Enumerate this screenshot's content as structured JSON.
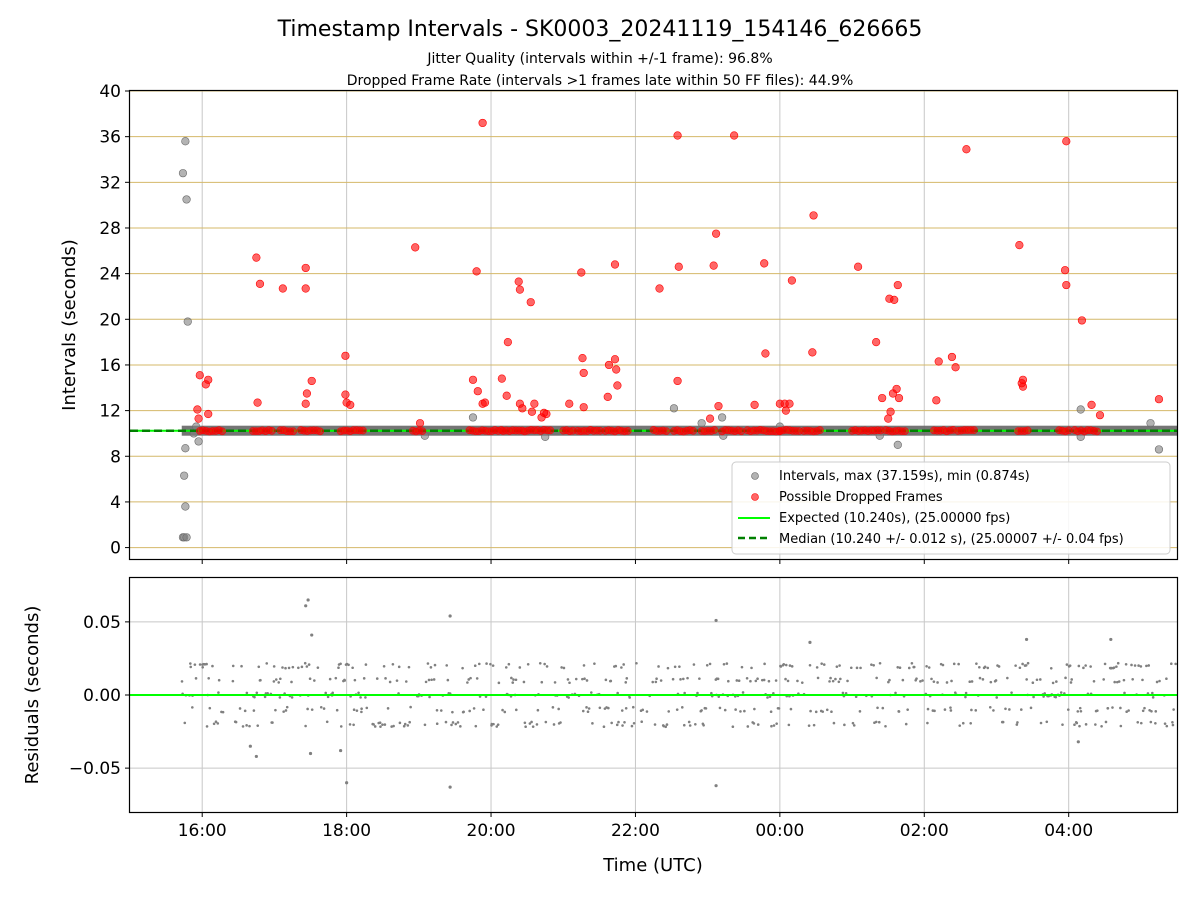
{
  "title": "Timestamp Intervals - SK0003_20241119_154146_626665",
  "subtitle_1": "Jitter Quality (intervals within +/-1 frame): 96.8%",
  "subtitle_2": "Dropped Frame Rate (intervals >1 frames late within 50 FF files): 44.9%",
  "colors": {
    "intervals": "#808080",
    "dropped": "#ff0000",
    "expected": "#00ff00",
    "median": "#008000",
    "hgrid_top": "#d4b86a",
    "vgrid": "#c8c8c8",
    "band": "#666666"
  },
  "chart_data": [
    {
      "type": "scatter",
      "ylabel": "Intervals (seconds)",
      "xlim": [
        "15:00",
        "05:30"
      ],
      "ylim": [
        -1,
        40
      ],
      "yticks": [
        "0",
        "4",
        "8",
        "12",
        "16",
        "20",
        "24",
        "28",
        "32",
        "36",
        "40"
      ],
      "grid": true,
      "legend_placement": "lower right",
      "legend": [
        "Intervals, max (37.159s), min (0.874s)",
        "Possible Dropped Frames",
        "Expected (10.240s), (25.00000 fps)",
        "Median (10.240 +/- 0.012 s), (25.00007 +/- 0.04 fps)"
      ],
      "expected_interval": 10.24,
      "median_interval": 10.24,
      "band": {
        "x_start": "15:43",
        "x_end": "05:30",
        "y_center": 10.24
      },
      "series": [
        {
          "name": "Intervals, max (37.159s), min (0.874s)",
          "points": [
            [
              "15:46",
              35.6
            ],
            [
              "15:44",
              32.8
            ],
            [
              "15:47",
              30.5
            ],
            [
              "15:48",
              19.8
            ],
            [
              "15:45",
              6.3
            ],
            [
              "15:46",
              3.6
            ],
            [
              "15:44",
              0.9
            ],
            [
              "15:45",
              0.9
            ],
            [
              "15:47",
              0.9
            ],
            [
              "15:46",
              8.7
            ],
            [
              "15:57",
              9.3
            ],
            [
              "15:53",
              10.0
            ],
            [
              "15:55",
              10.6
            ],
            [
              "19:05",
              9.8
            ],
            [
              "19:45",
              11.4
            ],
            [
              "20:45",
              9.7
            ],
            [
              "22:32",
              12.2
            ],
            [
              "22:55",
              10.9
            ],
            [
              "23:12",
              11.4
            ],
            [
              "23:13",
              9.8
            ],
            [
              "00:00",
              10.6
            ],
            [
              "01:23",
              9.8
            ],
            [
              "01:38",
              9.0
            ],
            [
              "04:10",
              12.1
            ],
            [
              "04:10",
              9.7
            ],
            [
              "05:08",
              10.9
            ],
            [
              "05:15",
              8.6
            ]
          ]
        },
        {
          "name": "Possible Dropped Frames",
          "points": [
            [
              "15:58",
              15.1
            ],
            [
              "16:03",
              14.3
            ],
            [
              "16:05",
              14.7
            ],
            [
              "15:56",
              12.1
            ],
            [
              "16:05",
              11.7
            ],
            [
              "15:57",
              11.3
            ],
            [
              "16:45",
              25.4
            ],
            [
              "16:48",
              23.1
            ],
            [
              "16:46",
              12.7
            ],
            [
              "17:07",
              22.7
            ],
            [
              "17:26",
              24.5
            ],
            [
              "17:26",
              22.7
            ],
            [
              "17:31",
              14.6
            ],
            [
              "17:27",
              13.5
            ],
            [
              "17:26",
              12.6
            ],
            [
              "17:59",
              16.8
            ],
            [
              "17:59",
              13.4
            ],
            [
              "18:00",
              12.7
            ],
            [
              "18:03",
              12.5
            ],
            [
              "18:57",
              26.3
            ],
            [
              "19:01",
              10.9
            ],
            [
              "19:53",
              37.2
            ],
            [
              "19:48",
              24.2
            ],
            [
              "19:45",
              14.7
            ],
            [
              "19:49",
              13.7
            ],
            [
              "19:53",
              12.6
            ],
            [
              "19:55",
              12.7
            ],
            [
              "20:09",
              14.8
            ],
            [
              "20:13",
              13.3
            ],
            [
              "20:14",
              18.0
            ],
            [
              "20:23",
              23.3
            ],
            [
              "20:24",
              22.6
            ],
            [
              "20:24",
              12.6
            ],
            [
              "20:26",
              12.2
            ],
            [
              "20:33",
              21.5
            ],
            [
              "20:34",
              11.9
            ],
            [
              "20:36",
              12.6
            ],
            [
              "20:42",
              11.4
            ],
            [
              "20:44",
              11.8
            ],
            [
              "20:46",
              11.7
            ],
            [
              "21:05",
              12.6
            ],
            [
              "21:15",
              24.1
            ],
            [
              "21:16",
              16.6
            ],
            [
              "21:17",
              15.3
            ],
            [
              "21:17",
              12.3
            ],
            [
              "21:37",
              13.2
            ],
            [
              "21:38",
              16.0
            ],
            [
              "21:43",
              16.5
            ],
            [
              "21:44",
              15.6
            ],
            [
              "21:43",
              24.8
            ],
            [
              "21:45",
              14.2
            ],
            [
              "22:20",
              22.7
            ],
            [
              "22:35",
              36.1
            ],
            [
              "22:36",
              24.6
            ],
            [
              "22:35",
              14.6
            ],
            [
              "23:05",
              24.7
            ],
            [
              "23:07",
              27.5
            ],
            [
              "23:09",
              12.4
            ],
            [
              "23:02",
              11.3
            ],
            [
              "23:22",
              36.1
            ],
            [
              "23:39",
              12.5
            ],
            [
              "23:47",
              24.9
            ],
            [
              "23:48",
              17.0
            ],
            [
              "00:00",
              12.6
            ],
            [
              "00:04",
              12.6
            ],
            [
              "00:05",
              12.0
            ],
            [
              "00:08",
              12.6
            ],
            [
              "00:10",
              23.4
            ],
            [
              "00:27",
              17.1
            ],
            [
              "00:28",
              29.1
            ],
            [
              "01:05",
              24.6
            ],
            [
              "01:20",
              18.0
            ],
            [
              "01:25",
              13.1
            ],
            [
              "01:30",
              11.3
            ],
            [
              "01:31",
              21.8
            ],
            [
              "01:32",
              11.9
            ],
            [
              "01:34",
              13.5
            ],
            [
              "01:35",
              21.7
            ],
            [
              "01:37",
              13.9
            ],
            [
              "01:38",
              23.0
            ],
            [
              "01:39",
              13.1
            ],
            [
              "02:10",
              12.9
            ],
            [
              "02:12",
              16.3
            ],
            [
              "02:23",
              16.7
            ],
            [
              "02:26",
              15.8
            ],
            [
              "02:35",
              34.9
            ],
            [
              "03:19",
              26.5
            ],
            [
              "03:21",
              14.4
            ],
            [
              "03:22",
              14.7
            ],
            [
              "03:22",
              14.1
            ],
            [
              "03:57",
              24.3
            ],
            [
              "03:58",
              23.0
            ],
            [
              "03:58",
              35.6
            ],
            [
              "04:11",
              19.9
            ],
            [
              "04:19",
              12.5
            ],
            [
              "04:26",
              11.6
            ],
            [
              "05:15",
              13.0
            ]
          ]
        }
      ]
    },
    {
      "type": "scatter",
      "ylabel": "Residuals (seconds)",
      "xlabel": "Time (UTC)",
      "xlim": [
        "15:00",
        "05:30"
      ],
      "ylim": [
        -0.08,
        0.08
      ],
      "yticks": [
        "−0.05",
        "0.00",
        "0.05"
      ],
      "xticks": [
        "16:00",
        "18:00",
        "20:00",
        "22:00",
        "00:00",
        "02:00",
        "04:00"
      ],
      "grid": true,
      "residual_levels": [
        -0.02,
        -0.01,
        0.0,
        0.01,
        0.02
      ],
      "series": [
        {
          "name": "Residuals",
          "points": [
            [
              "17:26",
              0.061
            ],
            [
              "17:28",
              0.065
            ],
            [
              "17:31",
              0.041
            ],
            [
              "19:26",
              0.054
            ],
            [
              "23:07",
              0.051
            ],
            [
              "00:25",
              0.036
            ],
            [
              "03:25",
              0.038
            ],
            [
              "04:35",
              0.038
            ],
            [
              "16:40",
              -0.035
            ],
            [
              "16:45",
              -0.042
            ],
            [
              "17:30",
              -0.04
            ],
            [
              "17:55",
              -0.038
            ],
            [
              "18:00",
              -0.06
            ],
            [
              "19:26",
              -0.063
            ],
            [
              "23:07",
              -0.062
            ],
            [
              "04:08",
              -0.032
            ]
          ]
        }
      ]
    }
  ]
}
